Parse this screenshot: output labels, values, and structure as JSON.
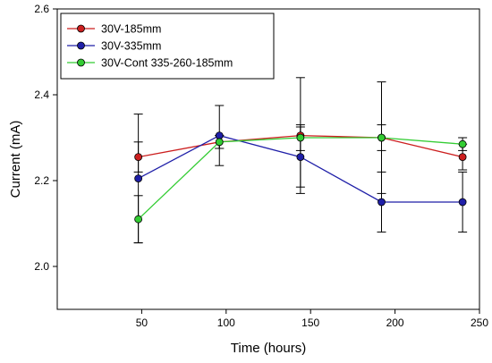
{
  "chart_data": {
    "type": "line",
    "xlabel": "Time (hours)",
    "ylabel": "Current (mA)",
    "xlim": [
      0,
      250
    ],
    "ylim": [
      1.9,
      2.6
    ],
    "xticks": [
      50,
      100,
      150,
      200,
      250
    ],
    "yticks": [
      2.0,
      2.2,
      2.4,
      2.6
    ],
    "ytick_labels": [
      "2.0",
      "2.2",
      "2.4",
      "2.6"
    ],
    "grid": false,
    "legend_position": "top-left",
    "x": [
      48,
      96,
      144,
      192,
      240
    ],
    "series": [
      {
        "name": "30V-185mm",
        "color": "#cc1f1f",
        "values": [
          2.255,
          2.29,
          2.305,
          2.3,
          2.255
        ],
        "error": [
          0.035,
          0.015,
          0.135,
          0.13,
          0.03
        ]
      },
      {
        "name": "30V-335mm",
        "color": "#1f1fa8",
        "values": [
          2.205,
          2.305,
          2.255,
          2.15,
          2.15
        ],
        "error": [
          0.15,
          0.07,
          0.07,
          0.07,
          0.07
        ]
      },
      {
        "name": "30V-Cont 335-260-185mm",
        "color": "#33cc33",
        "values": [
          2.11,
          2.29,
          2.3,
          2.3,
          2.285
        ],
        "error": [
          0.055,
          0.015,
          0.03,
          0.03,
          0.015
        ]
      }
    ]
  }
}
